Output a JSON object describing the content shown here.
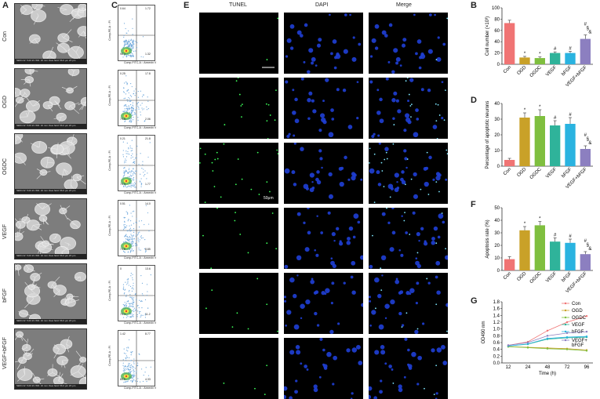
{
  "panels": {
    "A": "A",
    "B": "B",
    "C": "C",
    "D": "D",
    "E": "E",
    "F": "F",
    "G": "G"
  },
  "rows": [
    "Con",
    "OGD",
    "OGDC",
    "VEGF",
    "bFGF",
    "VEGF+bFGF"
  ],
  "tunel_columns": [
    "TUNEL",
    "DAPI",
    "Merge"
  ],
  "scale_bar": "50μm",
  "colors": {
    "Con": "#f07474",
    "OGD": "#c9a128",
    "OGDC": "#7fbf3f",
    "VEGF": "#2fb39a",
    "bFGF": "#2ab3e0",
    "VEGF+bFGF": "#8c7fc0"
  },
  "chart_data": [
    {
      "id": "B",
      "type": "bar",
      "categories": [
        "Con",
        "OGD",
        "OGDC",
        "VEGF",
        "bFGF",
        "VEGF+bFGF"
      ],
      "values": [
        73,
        12,
        11,
        20,
        20,
        45
      ],
      "errors": [
        5,
        2,
        2,
        2,
        3,
        7
      ],
      "annotations": [
        "",
        "*",
        "*",
        "#",
        "#",
        "#\n§\n&"
      ],
      "ylabel": "Cell number (×10³)",
      "ylim": [
        0,
        100
      ],
      "yticks": [
        0,
        20,
        40,
        60,
        80,
        100
      ]
    },
    {
      "id": "D",
      "type": "bar",
      "categories": [
        "Con",
        "OGD",
        "OGDC",
        "VEGF",
        "bFGF",
        "VEGF+bFGF"
      ],
      "values": [
        4,
        31,
        32,
        26,
        27,
        11
      ],
      "errors": [
        1,
        3,
        4,
        3,
        4,
        2
      ],
      "annotations": [
        "",
        "*",
        "*",
        "#",
        "#",
        "#\n§\n&"
      ],
      "ylabel": "Percentage of apoptotic neurons",
      "ylim": [
        0,
        40
      ],
      "yticks": [
        0,
        10,
        20,
        30,
        40
      ]
    },
    {
      "id": "F",
      "type": "bar",
      "categories": [
        "Con",
        "OGD",
        "OGDC",
        "VEGF",
        "bFGF",
        "VEGF+bFGF"
      ],
      "values": [
        9,
        32,
        36,
        23,
        22,
        13
      ],
      "errors": [
        2,
        3,
        3,
        3,
        3,
        2
      ],
      "annotations": [
        "",
        "*",
        "*",
        "#",
        "#",
        "#\n§\n&"
      ],
      "ylabel": "Apoptosis rate (%)",
      "ylim": [
        0,
        50
      ],
      "yticks": [
        0,
        10,
        20,
        30,
        40,
        50
      ]
    },
    {
      "id": "G",
      "type": "line",
      "x": [
        12,
        24,
        48,
        72,
        96
      ],
      "xlabel": "Time (h)",
      "ylabel": "OD490 nm",
      "ylim": [
        0,
        1.8
      ],
      "yticks": [
        0.0,
        0.2,
        0.4,
        0.6,
        0.8,
        1.0,
        1.2,
        1.4,
        1.6,
        1.8
      ],
      "series": [
        {
          "name": "Con",
          "values": [
            0.52,
            0.62,
            0.95,
            1.2,
            1.38
          ]
        },
        {
          "name": "OGD",
          "values": [
            0.48,
            0.46,
            0.44,
            0.42,
            0.38
          ]
        },
        {
          "name": "OGDC",
          "values": [
            0.48,
            0.45,
            0.42,
            0.4,
            0.36
          ]
        },
        {
          "name": "VEGF",
          "values": [
            0.5,
            0.55,
            0.7,
            0.74,
            0.76
          ]
        },
        {
          "name": "bFGF",
          "values": [
            0.5,
            0.56,
            0.72,
            0.76,
            0.78
          ]
        },
        {
          "name": "VEGF+\nbFGF",
          "values": [
            0.52,
            0.6,
            0.8,
            0.88,
            0.92
          ]
        }
      ]
    }
  ],
  "flow": [
    {
      "q1": "0.64",
      "q2": "1.72",
      "q3": "96.3",
      "q4": "1.32"
    },
    {
      "q1": "0.25",
      "q2": "17.8",
      "q3": "79.8",
      "q4": "2.06"
    },
    {
      "q1": "0.21",
      "q2": "21.8",
      "q3": "76.0",
      "q4": "1.77"
    },
    {
      "q1": "0.51",
      "q2": "14.0",
      "q3": "74.6",
      "q4": "8.85"
    },
    {
      "q1": "0",
      "q2": "13.6",
      "q3": "75.4",
      "q4": "11.2"
    },
    {
      "q1": "1.42",
      "q2": "8.77",
      "q3": "85.5",
      "q4": "4.33"
    }
  ],
  "flow_axes": {
    "x": "Comp-FITC-A :: Annexin V",
    "y": "Comp-PE-A :: PI"
  },
  "sem_caption": "SEM HV: 5.00 kV WD: 10 mm  View field: 56.0 μm  20 μm"
}
